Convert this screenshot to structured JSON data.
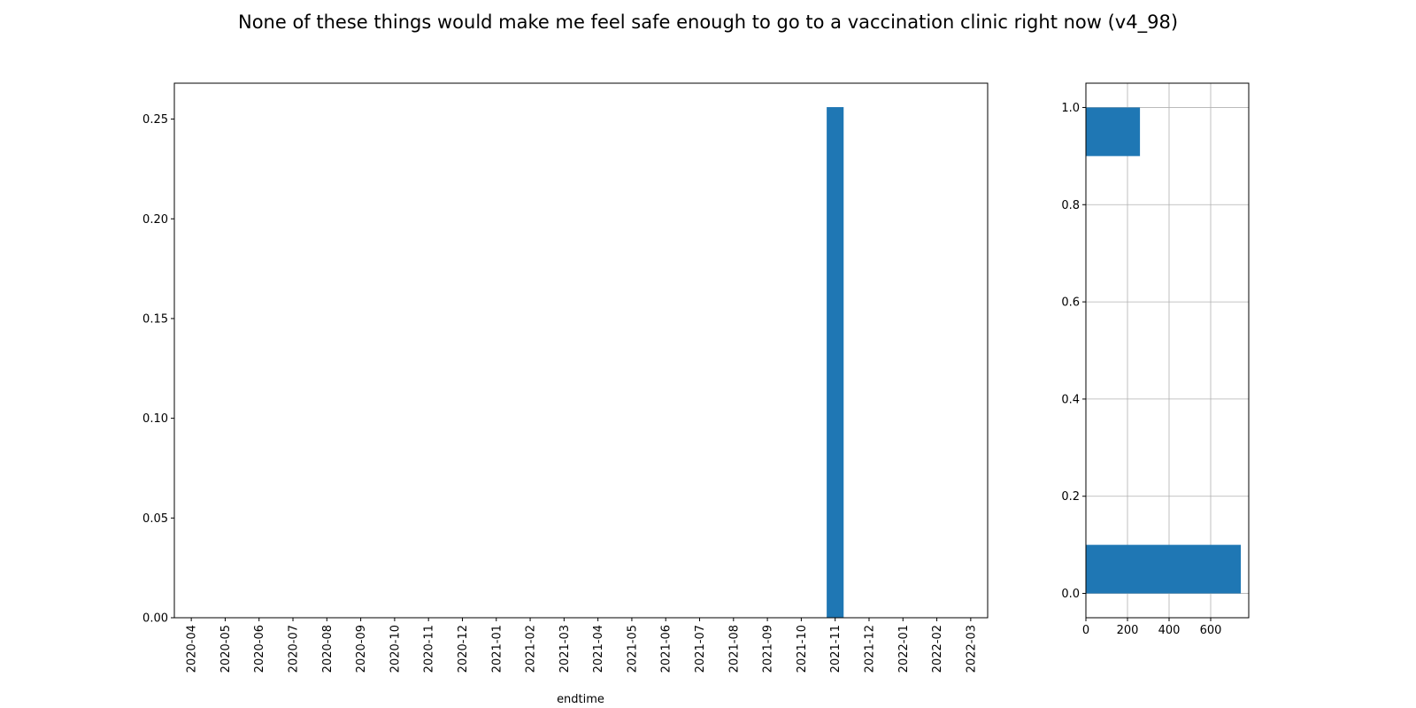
{
  "chart_data": [
    {
      "type": "bar",
      "title": "None of these things would make me feel safe enough to go to a vaccination clinic right now (v4_98)",
      "xlabel": "endtime",
      "categories": [
        "2020-04",
        "2020-05",
        "2020-06",
        "2020-07",
        "2020-08",
        "2020-09",
        "2020-10",
        "2020-11",
        "2020-12",
        "2021-01",
        "2021-02",
        "2021-03",
        "2021-04",
        "2021-05",
        "2021-06",
        "2021-07",
        "2021-08",
        "2021-09",
        "2021-10",
        "2021-11",
        "2021-12",
        "2022-01",
        "2022-02",
        "2022-03"
      ],
      "values": [
        0,
        0,
        0,
        0,
        0,
        0,
        0,
        0,
        0,
        0,
        0,
        0,
        0,
        0,
        0,
        0,
        0,
        0,
        0,
        0.256,
        0,
        0,
        0,
        0
      ],
      "color": "#1f77b4",
      "ylim": [
        0,
        0.268
      ],
      "yticks": [
        {
          "value": 0,
          "label": "0.00"
        },
        0.05,
        {
          "value": 0.1,
          "label": "0.10"
        },
        0.15,
        {
          "value": 0.2,
          "label": "0.20"
        },
        0.25
      ],
      "grid": false
    },
    {
      "type": "hist",
      "orientation": "horizontal",
      "bins": [
        0,
        0.1,
        0.2,
        0.3,
        0.4,
        0.5,
        0.6,
        0.7,
        0.8,
        0.9,
        1
      ],
      "counts": [
        745,
        0,
        0,
        0,
        0,
        0,
        0,
        0,
        0,
        260
      ],
      "color": "#1f77b4",
      "ylim": [
        -0.05,
        1.05
      ],
      "yticks": [
        {
          "value": 0,
          "label": "0.0"
        },
        0.2,
        0.4,
        0.6,
        0.8,
        {
          "value": 1,
          "label": "1.0"
        }
      ],
      "xlim": [
        0,
        783
      ],
      "xticks": [
        0,
        200,
        400,
        600
      ],
      "grid": true
    }
  ]
}
